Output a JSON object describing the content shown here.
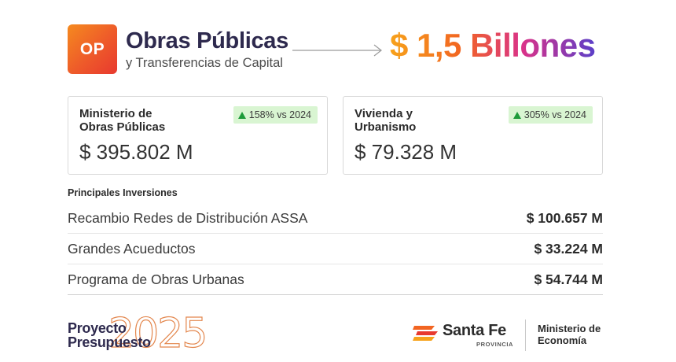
{
  "header": {
    "logo_text": "OP",
    "title": "Obras Públicas",
    "subtitle": "y Transferencias de Capital",
    "total_amount": "$ 1,5 Billones"
  },
  "cards": [
    {
      "title_line1": "Ministerio de",
      "title_line2": "Obras Públicas",
      "badge": "158% vs 2024",
      "value": "$ 395.802 M"
    },
    {
      "title_line1": "Vivienda y",
      "title_line2": "Urbanismo",
      "badge": "305% vs 2024",
      "value": "$ 79.328 M"
    }
  ],
  "investments": {
    "heading": "Principales Inversiones",
    "rows": [
      {
        "name": "Recambio Redes de Distribución ASSA",
        "amount": "$ 100.657 M"
      },
      {
        "name": "Grandes Acueductos",
        "amount": "$ 33.224 M"
      },
      {
        "name": "Programa de Obras Urbanas",
        "amount": "$ 54.744 M"
      }
    ]
  },
  "footer": {
    "project_line1": "Proyecto",
    "project_line2": "Presupuesto",
    "year": "2025",
    "brand": "Santa Fe",
    "brand_sub": "PROVINCIA",
    "ministry_line1": "Ministerio de",
    "ministry_line2": "Economía"
  },
  "colors": {
    "accent_orange": "#f26522",
    "accent_purple": "#5b3fc8",
    "badge_green_bg": "#d9f5d2",
    "badge_green_arrow": "#1e9b3a",
    "title_navy": "#2e2a4e"
  }
}
